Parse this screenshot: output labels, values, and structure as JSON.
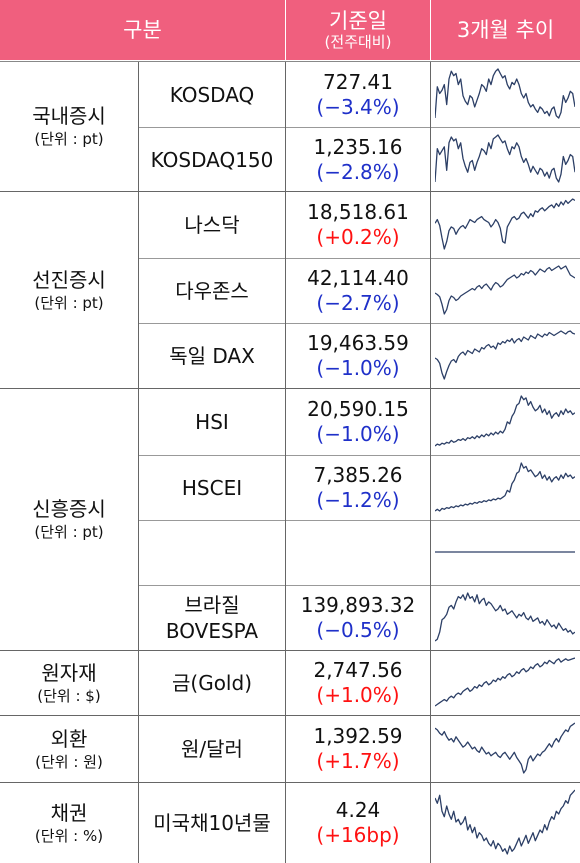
{
  "header": {
    "col_category": "구분",
    "col_base_date": "기준일",
    "col_base_sub": "(전주대비)",
    "col_trend": "3개월 추이"
  },
  "categories": [
    {
      "main": "국내증시",
      "unit": "(단위 : pt)"
    },
    {
      "main": "선진증시",
      "unit": "(단위 : pt)"
    },
    {
      "main": "신흥증시",
      "unit": "(단위 : pt)"
    },
    {
      "main": "원자재",
      "unit": "(단위 : $)"
    },
    {
      "main": "외환",
      "unit": "(단위 : 원)"
    },
    {
      "main": "채권",
      "unit": "(단위 : %)"
    }
  ],
  "rows": [
    {
      "name": "KOSDAQ",
      "value": "727.41",
      "change": "(−3.4%)",
      "dir": "neg",
      "trend": [
        60,
        32,
        38,
        35,
        30,
        48,
        25,
        18,
        22,
        20,
        30,
        25,
        40,
        45,
        48,
        40,
        42,
        50,
        44,
        38,
        30,
        32,
        36,
        25,
        30,
        22,
        18,
        16,
        20,
        24,
        22,
        30,
        34,
        28,
        30,
        25,
        30,
        38,
        42,
        38,
        46,
        50,
        48,
        52,
        55,
        50,
        52,
        56,
        54,
        58,
        52,
        50,
        58,
        60,
        55,
        40,
        46,
        42,
        36,
        38,
        50
      ]
    },
    {
      "name": "KOSDAQ150",
      "value": "1,235.16",
      "change": "(−2.8%)",
      "dir": "neg",
      "trend": [
        62,
        28,
        34,
        30,
        26,
        50,
        22,
        16,
        20,
        18,
        28,
        22,
        38,
        46,
        52,
        42,
        40,
        50,
        42,
        36,
        28,
        30,
        34,
        22,
        28,
        18,
        16,
        14,
        18,
        22,
        20,
        28,
        34,
        26,
        28,
        22,
        26,
        36,
        42,
        38,
        44,
        52,
        46,
        50,
        54,
        48,
        50,
        56,
        52,
        58,
        50,
        48,
        58,
        62,
        54,
        36,
        44,
        40,
        34,
        36,
        52
      ]
    },
    {
      "name": "나스닥",
      "value": "18,518.61",
      "change": "(+0.2%)",
      "dir": "pos",
      "trend": [
        35,
        30,
        38,
        55,
        70,
        60,
        45,
        40,
        42,
        50,
        44,
        40,
        38,
        42,
        36,
        30,
        32,
        34,
        30,
        28,
        26,
        30,
        32,
        34,
        40,
        36,
        30,
        34,
        42,
        60,
        62,
        40,
        34,
        28,
        26,
        30,
        28,
        22,
        20,
        24,
        28,
        22,
        26,
        18,
        20,
        16,
        14,
        18,
        15,
        12,
        10,
        14,
        8,
        12,
        6,
        10,
        4,
        8,
        5,
        2,
        4
      ]
    },
    {
      "name": "다우존스",
      "value": "42,114.40",
      "change": "(−2.7%)",
      "dir": "neg",
      "trend": [
        40,
        42,
        45,
        55,
        68,
        62,
        50,
        44,
        46,
        50,
        48,
        44,
        42,
        40,
        38,
        36,
        34,
        36,
        32,
        30,
        34,
        30,
        28,
        32,
        36,
        30,
        26,
        28,
        32,
        30,
        26,
        22,
        20,
        18,
        16,
        20,
        18,
        14,
        16,
        12,
        14,
        10,
        12,
        16,
        12,
        8,
        10,
        12,
        8,
        6,
        10,
        8,
        6,
        4,
        8,
        6,
        4,
        10,
        16,
        18,
        20
      ]
    },
    {
      "name": "독일 DAX",
      "value": "19,463.59",
      "change": "(−1.0%)",
      "dir": "neg",
      "trend": [
        38,
        40,
        45,
        58,
        66,
        56,
        48,
        42,
        40,
        44,
        36,
        32,
        30,
        34,
        28,
        30,
        32,
        26,
        28,
        30,
        24,
        26,
        22,
        20,
        24,
        22,
        26,
        18,
        20,
        16,
        18,
        14,
        16,
        12,
        18,
        14,
        12,
        16,
        10,
        12,
        14,
        8,
        10,
        12,
        6,
        8,
        10,
        6,
        8,
        4,
        6,
        8,
        6,
        4,
        2,
        4,
        6,
        3,
        2,
        5,
        6
      ]
    },
    {
      "name": "HSI",
      "value": "20,590.15",
      "change": "(−1.0%)",
      "dir": "neg",
      "trend": [
        56,
        54,
        55,
        53,
        54,
        52,
        53,
        50,
        52,
        51,
        49,
        50,
        48,
        50,
        47,
        48,
        46,
        48,
        45,
        47,
        44,
        46,
        43,
        45,
        42,
        44,
        41,
        43,
        40,
        42,
        38,
        30,
        32,
        24,
        20,
        12,
        10,
        2,
        6,
        4,
        12,
        8,
        14,
        18,
        16,
        12,
        20,
        16,
        22,
        18,
        26,
        22,
        20,
        24,
        18,
        22,
        16,
        20,
        18,
        22,
        20
      ]
    },
    {
      "name": "HSCEI",
      "value": "7,385.26",
      "change": "(−1.2%)",
      "dir": "neg",
      "trend": [
        62,
        60,
        62,
        59,
        60,
        58,
        59,
        57,
        58,
        56,
        57,
        55,
        56,
        54,
        55,
        53,
        54,
        52,
        53,
        51,
        52,
        50,
        51,
        49,
        50,
        48,
        49,
        47,
        48,
        46,
        44,
        38,
        40,
        30,
        26,
        18,
        16,
        6,
        12,
        10,
        16,
        14,
        18,
        22,
        20,
        16,
        24,
        20,
        26,
        22,
        28,
        24,
        22,
        26,
        20,
        24,
        18,
        22,
        20,
        24,
        22
      ]
    },
    {
      "name": "",
      "value": "",
      "change": "",
      "dir": "neg",
      "trend": [
        20,
        20
      ]
    },
    {
      "name": "브라질",
      "name2": "BOVESPA",
      "value": "139,893.32",
      "change": "(−0.5%)",
      "dir": "neg",
      "trend": [
        60,
        58,
        50,
        36,
        34,
        30,
        22,
        20,
        24,
        16,
        10,
        12,
        8,
        14,
        6,
        12,
        10,
        16,
        8,
        18,
        14,
        12,
        20,
        16,
        18,
        22,
        26,
        24,
        20,
        26,
        24,
        30,
        28,
        26,
        30,
        34,
        30,
        32,
        28,
        34,
        36,
        32,
        38,
        36,
        34,
        40,
        38,
        42,
        36,
        40,
        44,
        42,
        46,
        40,
        44,
        48,
        46,
        50,
        48,
        52,
        50
      ]
    },
    {
      "name": "금(Gold)",
      "value": "2,747.56",
      "change": "(+1.0%)",
      "dir": "pos",
      "trend": [
        60,
        58,
        56,
        54,
        52,
        54,
        50,
        48,
        50,
        46,
        44,
        46,
        42,
        40,
        38,
        42,
        40,
        36,
        38,
        34,
        36,
        32,
        30,
        34,
        32,
        28,
        30,
        26,
        28,
        24,
        26,
        22,
        20,
        24,
        22,
        18,
        20,
        16,
        14,
        18,
        16,
        12,
        14,
        10,
        8,
        12,
        10,
        6,
        8,
        4,
        6,
        8,
        4,
        2,
        6,
        4,
        2,
        4,
        3,
        2,
        1
      ]
    },
    {
      "name": "원/달러",
      "value": "1,392.59",
      "change": "(+1.7%)",
      "dir": "pos",
      "trend": [
        8,
        10,
        14,
        16,
        12,
        18,
        22,
        20,
        24,
        18,
        22,
        26,
        30,
        28,
        24,
        28,
        32,
        30,
        34,
        36,
        30,
        34,
        38,
        36,
        40,
        38,
        36,
        40,
        42,
        38,
        36,
        40,
        44,
        40,
        36,
        42,
        46,
        50,
        60,
        56,
        44,
        40,
        46,
        42,
        38,
        40,
        36,
        34,
        30,
        26,
        30,
        24,
        20,
        24,
        18,
        14,
        10,
        12,
        6,
        4,
        2
      ]
    },
    {
      "name": "미국채10년물",
      "value": "4.24",
      "change": "(+16bp)",
      "dir": "pos",
      "trend": [
        10,
        14,
        8,
        20,
        24,
        16,
        22,
        26,
        20,
        28,
        26,
        30,
        28,
        24,
        34,
        30,
        36,
        32,
        40,
        36,
        38,
        42,
        40,
        44,
        46,
        42,
        48,
        44,
        46,
        50,
        48,
        52,
        46,
        50,
        48,
        44,
        40,
        46,
        42,
        38,
        44,
        40,
        36,
        42,
        38,
        34,
        36,
        30,
        34,
        28,
        24,
        26,
        20,
        22,
        18,
        16,
        12,
        14,
        8,
        6,
        4
      ]
    }
  ]
}
